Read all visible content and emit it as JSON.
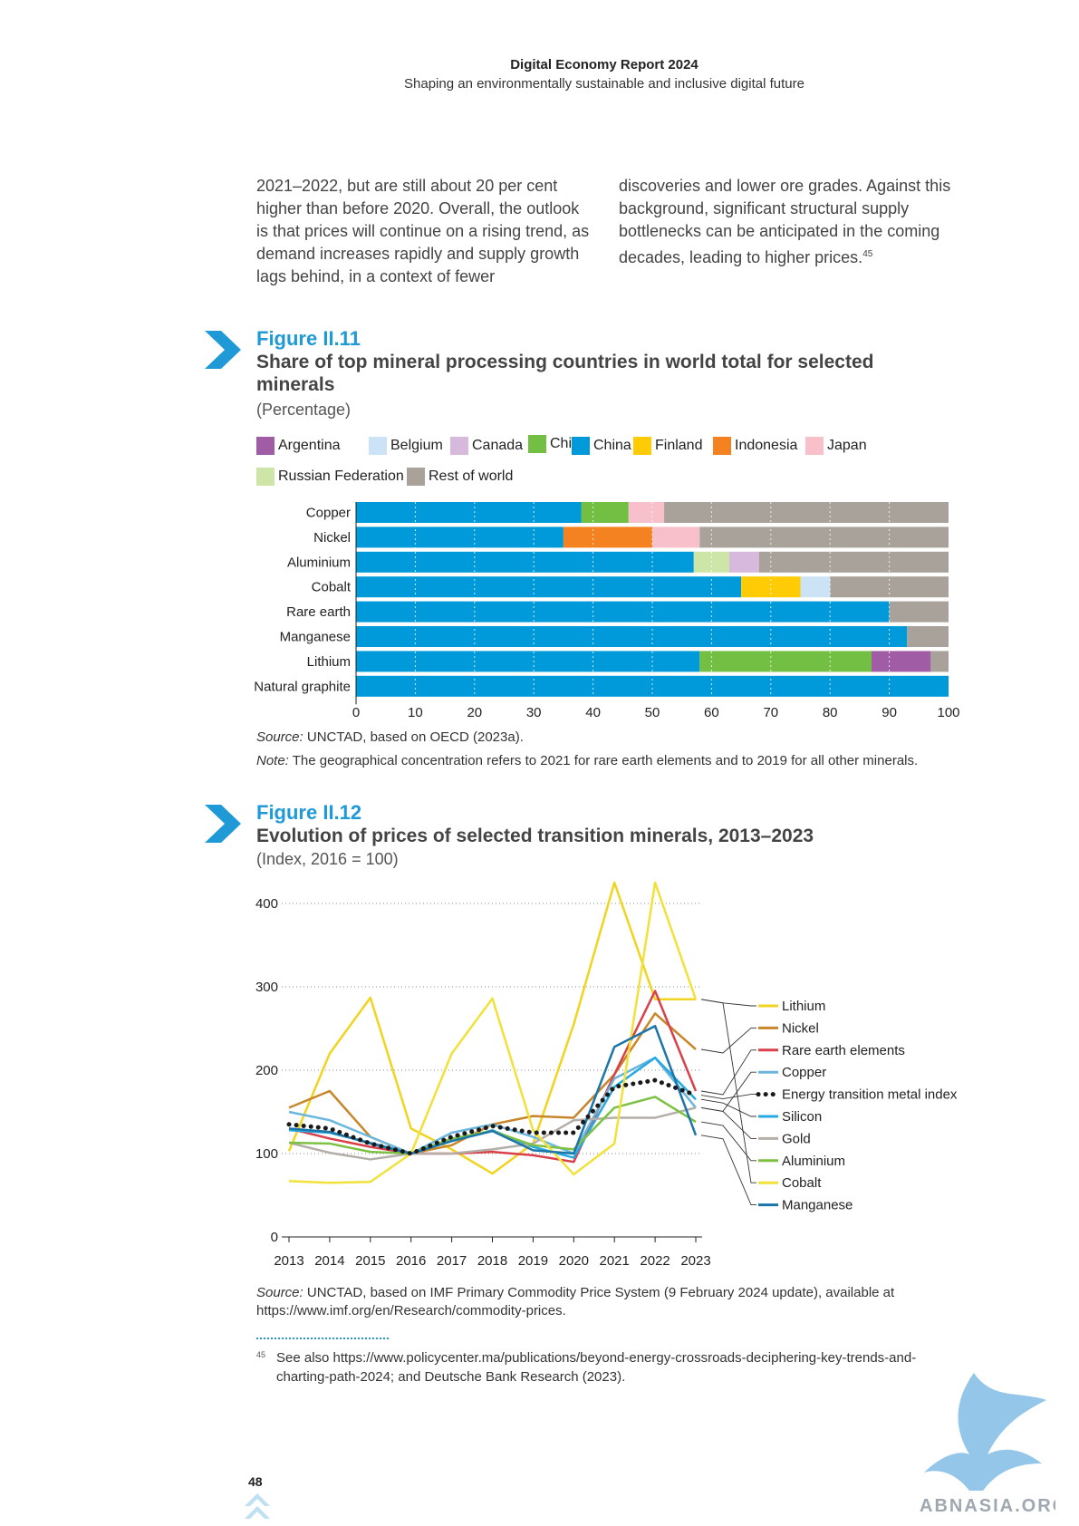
{
  "header": {
    "title": "Digital Economy Report 2024",
    "subtitle": "Shaping an environmentally sustainable and inclusive digital future"
  },
  "body": {
    "col1": "2021–2022, but are still about 20 per cent higher than before 2020. Overall, the outlook is that prices will continue on a rising trend, as demand increases rapidly and supply growth lags behind, in a context of fewer",
    "col2": "discoveries and lower ore grades. Against this background, significant structural supply bottlenecks can be anticipated in the coming decades, leading to higher prices.",
    "col2_sup": "45"
  },
  "figure11": {
    "number": "Figure II.11",
    "title": "Share of top mineral processing countries in world total for selected minerals",
    "unit": "(Percentage)",
    "source_label": "Source:",
    "source_text": "UNCTAD, based on OECD (2023a).",
    "note_label": "Note:",
    "note_text": "The geographical concentration refers to 2021 for rare earth elements and to 2019 for all other minerals."
  },
  "figure12": {
    "number": "Figure II.12",
    "title": "Evolution of prices of selected transition minerals, 2013–2023",
    "unit": "(Index, 2016 = 100)",
    "source_label": "Source:",
    "source_text": "UNCTAD, based on IMF Primary Commodity Price System (9 February 2024 update), available at https://www.imf.org/en/Research/commodity-prices."
  },
  "footnote": {
    "marker": "45",
    "text": "See also https://www.policycenter.ma/publications/beyond-energy-crossroads-deciphering-key-trends-and-charting-path-2024; and Deutsche Bank Research (2023)."
  },
  "page_number": "48",
  "watermark": "ABNASIA.ORG",
  "chart_data": [
    {
      "type": "bar",
      "orientation": "horizontal",
      "stacked": true,
      "categories": [
        "Copper",
        "Nickel",
        "Aluminium",
        "Cobalt",
        "Rare earth",
        "Manganese",
        "Lithium",
        "Natural graphite"
      ],
      "series": [
        {
          "name": "China",
          "color": "#009ada",
          "values": [
            38,
            35,
            57,
            65,
            90,
            93,
            58,
            100
          ]
        },
        {
          "name": "Indonesia",
          "color": "#f58220",
          "values": [
            0,
            15,
            0,
            0,
            0,
            0,
            0,
            0
          ]
        },
        {
          "name": "Chile",
          "color": "#72bf44",
          "values": [
            8,
            0,
            0,
            0,
            0,
            0,
            29,
            0
          ]
        },
        {
          "name": "Argentina",
          "color": "#a05da5",
          "values": [
            0,
            0,
            0,
            0,
            0,
            0,
            10,
            0
          ]
        },
        {
          "name": "Russian  Federation",
          "color": "#cde5a6",
          "values": [
            0,
            0,
            6,
            0,
            0,
            0,
            0,
            0
          ]
        },
        {
          "name": "Finland",
          "color": "#ffcb05",
          "values": [
            0,
            0,
            0,
            10,
            0,
            0,
            0,
            0
          ]
        },
        {
          "name": "Belgium",
          "color": "#cce3f5",
          "values": [
            0,
            0,
            0,
            5,
            0,
            0,
            0,
            0
          ]
        },
        {
          "name": "Canada",
          "color": "#d7b9dd",
          "values": [
            0,
            0,
            5,
            0,
            0,
            0,
            0,
            0
          ]
        },
        {
          "name": "Japan",
          "color": "#f7c0cb",
          "values": [
            6,
            8,
            0,
            0,
            0,
            0,
            0,
            0
          ]
        },
        {
          "name": "Rest of world",
          "color": "#a8a29b",
          "values": [
            48,
            42,
            32,
            20,
            10,
            7,
            3,
            0
          ]
        }
      ],
      "legend_order": [
        "Argentina",
        "Belgium",
        "Canada",
        "Chile",
        "China",
        "Finland",
        "Indonesia",
        "Japan",
        "Russian  Federation",
        "Rest of world"
      ],
      "xlim": [
        0,
        100
      ],
      "xticks": [
        "0",
        "10",
        "20",
        "30",
        "40",
        "50",
        "60",
        "70",
        "80",
        "90",
        "100"
      ],
      "grid": true,
      "legend_position": "top"
    },
    {
      "type": "line",
      "x": [
        "2013",
        "2014",
        "2015",
        "2016",
        "2017",
        "2018",
        "2019",
        "2020",
        "2021",
        "2022",
        "2023"
      ],
      "ylim": [
        0,
        400
      ],
      "yticks": [
        "0",
        "100",
        "200",
        "300",
        "400"
      ],
      "grid": true,
      "legend_position": "right",
      "series": [
        {
          "name": "Lithium",
          "color": "#f1d420",
          "style": "solid",
          "values": [
            103,
            220,
            287,
            130,
            105,
            76,
            112,
            255,
            425,
            285,
            285
          ]
        },
        {
          "name": "Nickel",
          "color": "#c8862a",
          "style": "solid",
          "values": [
            155,
            175,
            120,
            100,
            110,
            135,
            145,
            143,
            195,
            268,
            225
          ]
        },
        {
          "name": "Rare earth elements",
          "color": "#d9404a",
          "style": "solid",
          "values": [
            130,
            118,
            108,
            100,
            100,
            102,
            98,
            90,
            195,
            295,
            175
          ]
        },
        {
          "name": "Copper",
          "color": "#6bb6dd",
          "style": "solid",
          "values": [
            150,
            140,
            120,
            100,
            125,
            135,
            120,
            100,
            190,
            215,
            155
          ]
        },
        {
          "name": "Energy transition metal index",
          "color": "#1a1a1a",
          "style": "dotted",
          "values": [
            135,
            130,
            112,
            100,
            120,
            133,
            125,
            125,
            180,
            188,
            170
          ]
        },
        {
          "name": "Silicon",
          "color": "#27a9e1",
          "style": "solid",
          "values": [
            128,
            125,
            113,
            100,
            115,
            128,
            108,
            95,
            180,
            215,
            165
          ]
        },
        {
          "name": "Gold",
          "color": "#b3aea8",
          "style": "solid",
          "values": [
            113,
            101,
            93,
            100,
            100,
            105,
            112,
            140,
            143,
            143,
            155
          ]
        },
        {
          "name": "Aluminium",
          "color": "#7dc143",
          "style": "solid",
          "values": [
            113,
            112,
            102,
            100,
            118,
            127,
            110,
            105,
            155,
            168,
            138
          ]
        },
        {
          "name": "Cobalt",
          "color": "#f1e13a",
          "style": "solid",
          "values": [
            67,
            65,
            66,
            100,
            220,
            286,
            128,
            75,
            112,
            425,
            285
          ]
        },
        {
          "name": "Manganese",
          "color": "#1b75a8",
          "style": "solid",
          "values": [
            130,
            126,
            112,
            100,
            115,
            127,
            104,
            100,
            228,
            253,
            122
          ]
        }
      ],
      "legend_order": [
        "Lithium",
        "Nickel",
        "Rare earth elements",
        "Copper",
        "Energy transition metal index",
        "Silicon",
        "Gold",
        "Aluminium",
        "Cobalt",
        "Manganese"
      ]
    }
  ]
}
